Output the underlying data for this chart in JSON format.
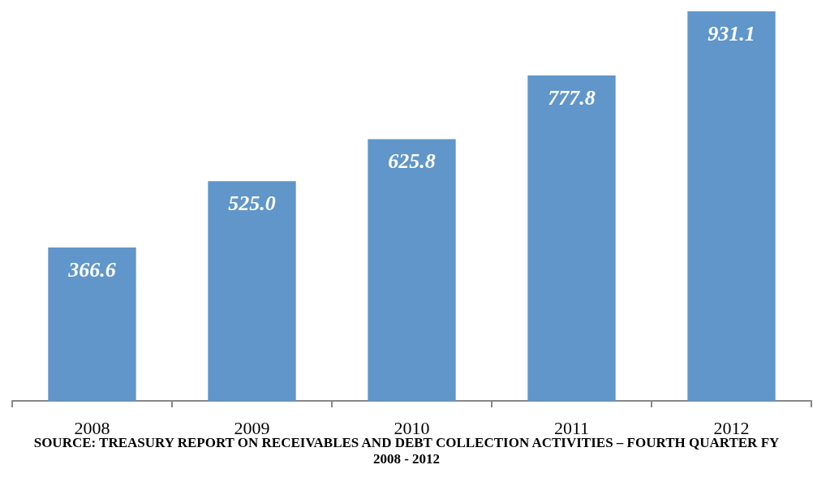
{
  "chart_data": {
    "type": "bar",
    "categories": [
      "2008",
      "2009",
      "2010",
      "2011",
      "2012"
    ],
    "values": [
      366.6,
      525.0,
      625.8,
      777.8,
      931.1
    ],
    "value_labels": [
      "366.6",
      "525.0",
      "625.8",
      "777.8",
      "931.1"
    ],
    "color": "#6096c9",
    "annotations": [
      "SOURCE: TREASURY REPORT ON RECEIVABLES AND DEBT COLLECTION ACTIVITIES – FOURTH QUARTER FY 2008 - 2012"
    ]
  }
}
